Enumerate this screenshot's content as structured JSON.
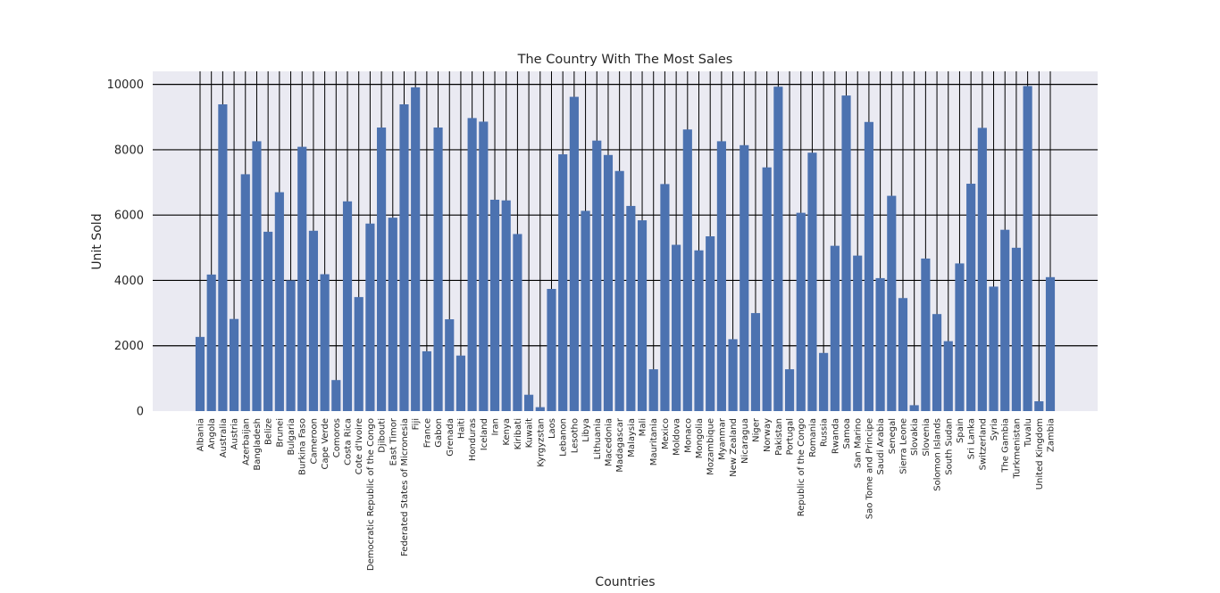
{
  "chart_data": {
    "type": "bar",
    "title": "The Country With The Most Sales",
    "xlabel": "Countries",
    "ylabel": "Unit Sold",
    "ylim": [
      0,
      10400
    ],
    "yticks": [
      0,
      2000,
      4000,
      6000,
      8000,
      10000
    ],
    "grid": true,
    "colors": {
      "bar": "#4c72b0",
      "plot_bg": "#eaeaf2",
      "grid": "#000000"
    },
    "categories": [
      "Albania",
      "Angola",
      "Australia",
      "Austria",
      "Azerbaijan",
      "Bangladesh",
      "Belize",
      "Brunei",
      "Bulgaria",
      "Burkina Faso",
      "Cameroon",
      "Cape Verde",
      "Comoros",
      "Costa Rica",
      "Cote d'Ivoire",
      "Democratic Republic of the Congo",
      "Djibouti",
      "East Timor",
      "Federated States of Micronesia",
      "Fiji",
      "France",
      "Gabon",
      "Grenada",
      "Haiti",
      "Honduras",
      "Iceland",
      "Iran",
      "Kenya",
      "Kiribati",
      "Kuwait",
      "Kyrgyzstan",
      "Laos",
      "Lebanon",
      "Lesotho",
      "Libya",
      "Lithuania",
      "Macedonia",
      "Madagascar",
      "Malaysia",
      "Mali",
      "Mauritania",
      "Mexico",
      "Moldova",
      "Monaco",
      "Mongolia",
      "Mozambique",
      "Myanmar",
      "New Zealand",
      "Nicaragua",
      "Niger",
      "Norway",
      "Pakistan",
      "Portugal",
      "Republic of the Congo",
      "Romania",
      "Russia",
      "Rwanda",
      "Samoa",
      "San Marino",
      "Sao Tome and Principe",
      "Saudi Arabia",
      "Senegal",
      "Sierra Leone",
      "Slovakia",
      "Slovenia",
      "Solomon Islands",
      "South Sudan",
      "Spain",
      "Sri Lanka",
      "Switzerland",
      "Syria",
      "The Gambia",
      "Turkmenistan",
      "Tuvalu",
      "United Kingdom",
      "Zambia"
    ],
    "values": [
      2270,
      4180,
      9390,
      2820,
      7250,
      8260,
      5490,
      6700,
      4000,
      8090,
      5520,
      4190,
      950,
      6420,
      3490,
      5740,
      8680,
      5920,
      9390,
      9910,
      1830,
      8680,
      2810,
      1700,
      8970,
      8860,
      6470,
      6450,
      5420,
      500,
      120,
      3740,
      7860,
      9620,
      6130,
      8280,
      7840,
      7350,
      6280,
      5840,
      1280,
      6950,
      5090,
      8620,
      4920,
      5350,
      8260,
      2200,
      8140,
      3000,
      7460,
      9930,
      1280,
      6070,
      7910,
      1780,
      5060,
      9660,
      4760,
      8850,
      4070,
      6590,
      3460,
      180,
      4670,
      2970,
      2140,
      4520,
      6960,
      8670,
      3810,
      5550,
      5000,
      9950,
      300,
      4100
    ]
  }
}
